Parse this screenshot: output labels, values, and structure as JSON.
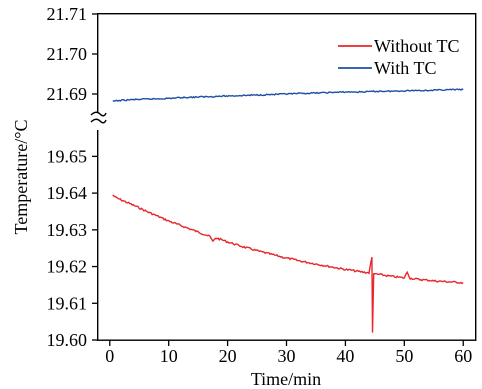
{
  "chart_data": {
    "type": "line",
    "xlabel": "Time/min",
    "ylabel": "Temperature/°C",
    "xlim": [
      -2,
      62
    ],
    "x_ticks": [
      0,
      10,
      20,
      30,
      40,
      50,
      60
    ],
    "x_tick_labels": [
      "0",
      "10",
      "20",
      "30",
      "40",
      "50",
      "60"
    ],
    "y_axis_break": true,
    "y_upper_segment": {
      "ylim": [
        21.685,
        21.71
      ],
      "ticks": [
        21.69,
        21.7,
        21.71
      ],
      "tick_labels": [
        "21.69",
        "21.70",
        "21.71"
      ]
    },
    "y_lower_segment": {
      "ylim": [
        19.6,
        19.658
      ],
      "ticks": [
        19.6,
        19.61,
        19.62,
        19.63,
        19.64,
        19.65
      ],
      "tick_labels": [
        "19.60",
        "19.61",
        "19.62",
        "19.63",
        "19.64",
        "19.65"
      ]
    },
    "legend_position": "top-right",
    "series": [
      {
        "name": "Without TC",
        "color": "#e8262b",
        "segment": "lower",
        "points": [
          [
            0.5,
            19.6395
          ],
          [
            1,
            19.6388
          ],
          [
            2,
            19.6381
          ],
          [
            3,
            19.6374
          ],
          [
            4,
            19.6367
          ],
          [
            5,
            19.636
          ],
          [
            6,
            19.6352
          ],
          [
            7,
            19.6345
          ],
          [
            8,
            19.6338
          ],
          [
            9,
            19.6331
          ],
          [
            10,
            19.6324
          ],
          [
            11,
            19.6318
          ],
          [
            12,
            19.6312
          ],
          [
            13,
            19.6306
          ],
          [
            14,
            19.63
          ],
          [
            15,
            19.6294
          ],
          [
            16,
            19.6288
          ],
          [
            17,
            19.6282
          ],
          [
            17.5,
            19.6268
          ],
          [
            18,
            19.6278
          ],
          [
            19,
            19.6273
          ],
          [
            20,
            19.6267
          ],
          [
            21,
            19.6262
          ],
          [
            22,
            19.6257
          ],
          [
            23,
            19.6252
          ],
          [
            24,
            19.6248
          ],
          [
            25,
            19.6243
          ],
          [
            26,
            19.6239
          ],
          [
            27,
            19.6235
          ],
          [
            28,
            19.6231
          ],
          [
            29,
            19.6227
          ],
          [
            30,
            19.6223
          ],
          [
            31,
            19.622
          ],
          [
            32,
            19.6216
          ],
          [
            33,
            19.6213
          ],
          [
            34,
            19.621
          ],
          [
            35,
            19.6207
          ],
          [
            36,
            19.6204
          ],
          [
            37,
            19.6201
          ],
          [
            38,
            19.6198
          ],
          [
            39,
            19.6195
          ],
          [
            40,
            19.6192
          ],
          [
            41,
            19.619
          ],
          [
            42,
            19.6187
          ],
          [
            43,
            19.6185
          ],
          [
            44,
            19.6183
          ],
          [
            44.5,
            19.6225
          ],
          [
            44.6,
            19.6022
          ],
          [
            44.8,
            19.6178
          ],
          [
            45,
            19.618
          ],
          [
            46,
            19.6178
          ],
          [
            47,
            19.6175
          ],
          [
            48,
            19.6173
          ],
          [
            49,
            19.6171
          ],
          [
            50,
            19.6169
          ],
          [
            50.5,
            19.6185
          ],
          [
            51,
            19.6168
          ],
          [
            52,
            19.6166
          ],
          [
            53,
            19.6164
          ],
          [
            54,
            19.6163
          ],
          [
            55,
            19.6161
          ],
          [
            56,
            19.616
          ],
          [
            57,
            19.6159
          ],
          [
            58,
            19.6158
          ],
          [
            59,
            19.6157
          ],
          [
            60,
            19.6156
          ]
        ]
      },
      {
        "name": "With TC",
        "color": "#1f4fa5",
        "segment": "upper",
        "points": [
          [
            0.5,
            21.6882
          ],
          [
            2,
            21.6884
          ],
          [
            4,
            21.6886
          ],
          [
            6,
            21.6887
          ],
          [
            8,
            21.6888
          ],
          [
            10,
            21.6889
          ],
          [
            12,
            21.6891
          ],
          [
            14,
            21.6892
          ],
          [
            16,
            21.6893
          ],
          [
            18,
            21.6894
          ],
          [
            20,
            21.6895
          ],
          [
            22,
            21.6896
          ],
          [
            24,
            21.6897
          ],
          [
            26,
            21.6898
          ],
          [
            28,
            21.6899
          ],
          [
            30,
            21.69
          ],
          [
            32,
            21.6901
          ],
          [
            34,
            21.6902
          ],
          [
            36,
            21.6903
          ],
          [
            38,
            21.6904
          ],
          [
            40,
            21.6905
          ],
          [
            42,
            21.6905
          ],
          [
            44,
            21.6906
          ],
          [
            46,
            21.6907
          ],
          [
            48,
            21.6907
          ],
          [
            50,
            21.6908
          ],
          [
            52,
            21.6909
          ],
          [
            54,
            21.6909
          ],
          [
            56,
            21.691
          ],
          [
            58,
            21.6911
          ],
          [
            60,
            21.6911
          ]
        ]
      }
    ]
  }
}
